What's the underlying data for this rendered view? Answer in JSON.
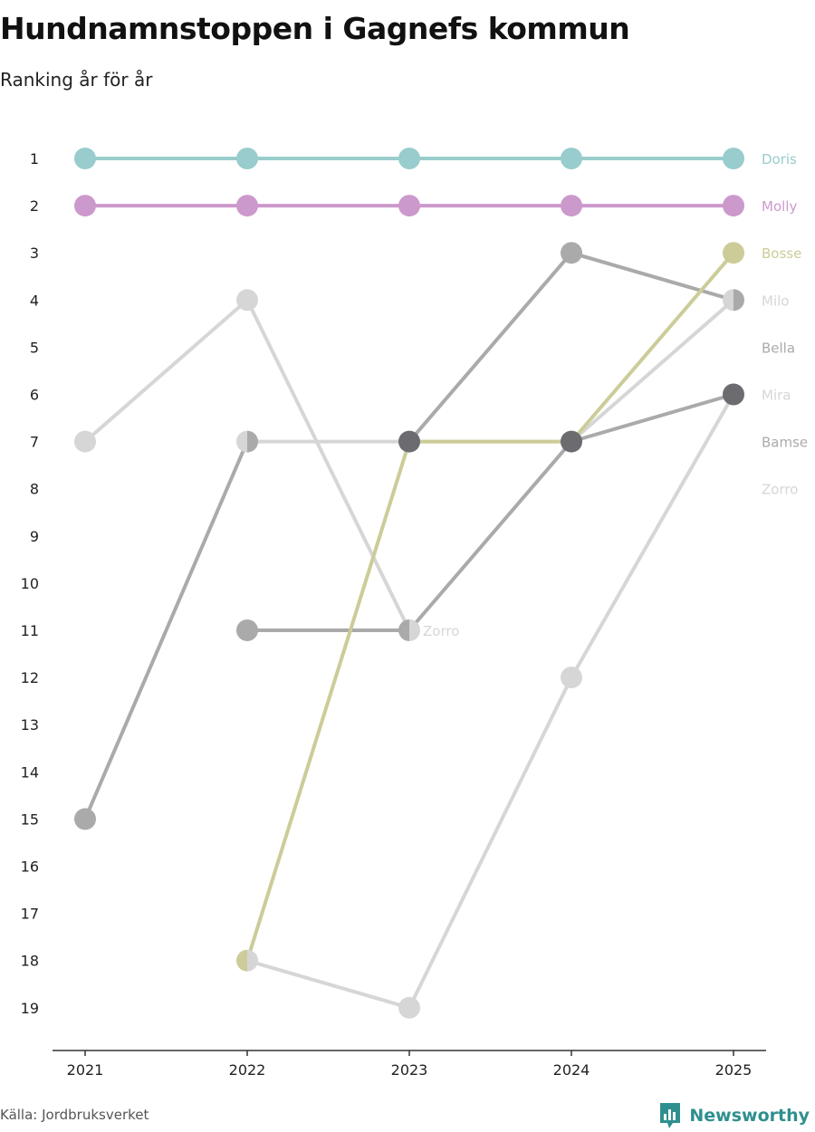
{
  "chart_data": {
    "type": "bump",
    "title": "Hundnamnstoppen i Gagnefs kommun",
    "subtitle": "Ranking år för år",
    "x": [
      "2021",
      "2022",
      "2023",
      "2024",
      "2025"
    ],
    "y_ticks": [
      "1",
      "2",
      "3",
      "4",
      "5",
      "6",
      "7",
      "8",
      "9",
      "10",
      "11",
      "12",
      "13",
      "14",
      "15",
      "16",
      "17",
      "18",
      "19"
    ],
    "ylim": [
      1,
      19
    ],
    "y_reversed": true,
    "series": [
      {
        "name": "Zorro",
        "color": "#d6d6d6",
        "ranks": [
          null,
          null,
          11,
          null,
          null
        ]
      },
      {
        "name": "Bamse",
        "color": "#d6d6d6",
        "ranks": [
          null,
          18,
          19,
          12,
          6
        ]
      },
      {
        "name": "Bella",
        "color": "#d6d6d6",
        "ranks": [
          7,
          4,
          11,
          null,
          null
        ]
      },
      {
        "name": "Milo",
        "color": "#d6d6d6",
        "ranks": [
          null,
          7,
          7,
          7,
          4
        ]
      },
      {
        "name": "Mira",
        "color": "#aaaaaa",
        "ranks": [
          15,
          7,
          null,
          null,
          null
        ]
      },
      {
        "name": "Mira",
        "color": "#aaaaaa",
        "ranks": [
          null,
          11,
          11,
          7,
          6
        ]
      },
      {
        "name": "Bella",
        "color": "#aaaaaa",
        "ranks": [
          null,
          null,
          7,
          3,
          4
        ]
      },
      {
        "name": "Bosse",
        "color": "#cccc99",
        "ranks": [
          null,
          18,
          7,
          7,
          3
        ]
      },
      {
        "name": "Molly",
        "color": "#cc99cc",
        "ranks": [
          2,
          2,
          2,
          2,
          2
        ]
      },
      {
        "name": "Doris",
        "color": "#99cccc",
        "ranks": [
          1,
          1,
          1,
          1,
          1
        ]
      }
    ],
    "markers": [
      {
        "x": "2021",
        "rank": 1,
        "fill": "#99cccc"
      },
      {
        "x": "2022",
        "rank": 1,
        "fill": "#99cccc"
      },
      {
        "x": "2023",
        "rank": 1,
        "fill": "#99cccc"
      },
      {
        "x": "2024",
        "rank": 1,
        "fill": "#99cccc"
      },
      {
        "x": "2025",
        "rank": 1,
        "fill": "#99cccc"
      },
      {
        "x": "2021",
        "rank": 2,
        "fill": "#cc99cc"
      },
      {
        "x": "2022",
        "rank": 2,
        "fill": "#cc99cc"
      },
      {
        "x": "2023",
        "rank": 2,
        "fill": "#cc99cc"
      },
      {
        "x": "2024",
        "rank": 2,
        "fill": "#cc99cc"
      },
      {
        "x": "2025",
        "rank": 2,
        "fill": "#cc99cc"
      },
      {
        "x": "2021",
        "rank": 7,
        "fill": "#d6d6d6"
      },
      {
        "x": "2021",
        "rank": 15,
        "fill": "#aaaaaa"
      },
      {
        "x": "2022",
        "rank": 4,
        "fill": "#d6d6d6"
      },
      {
        "x": "2022",
        "rank": 7,
        "split": [
          "#d6d6d6",
          "#aaaaaa"
        ]
      },
      {
        "x": "2022",
        "rank": 11,
        "fill": "#aaaaaa"
      },
      {
        "x": "2022",
        "rank": 18,
        "split": [
          "#cccc99",
          "#d6d6d6"
        ]
      },
      {
        "x": "2023",
        "rank": 7,
        "fill": "#6b6b70"
      },
      {
        "x": "2023",
        "rank": 11,
        "split": [
          "#aaaaaa",
          "#d6d6d6"
        ]
      },
      {
        "x": "2023",
        "rank": 19,
        "fill": "#d6d6d6"
      },
      {
        "x": "2024",
        "rank": 3,
        "fill": "#aaaaaa"
      },
      {
        "x": "2024",
        "rank": 7,
        "fill": "#6b6b70"
      },
      {
        "x": "2024",
        "rank": 12,
        "fill": "#d6d6d6"
      },
      {
        "x": "2025",
        "rank": 3,
        "fill": "#cccc99"
      },
      {
        "x": "2025",
        "rank": 4,
        "split": [
          "#d6d6d6",
          "#aaaaaa"
        ]
      },
      {
        "x": "2025",
        "rank": 6,
        "fill": "#6b6b70"
      }
    ],
    "end_labels": [
      {
        "rank": 1,
        "text": "Doris",
        "color": "#99cccc"
      },
      {
        "rank": 2,
        "text": "Molly",
        "color": "#cc99cc"
      },
      {
        "rank": 3,
        "text": "Bosse",
        "color": "#cccc99"
      },
      {
        "rank": 4,
        "text": "Milo",
        "color": "#d6d6d6"
      },
      {
        "rank": 5,
        "text": "Bella",
        "color": "#aaaaaa"
      },
      {
        "rank": 6,
        "text": "Mira",
        "color": "#d6d6d6"
      },
      {
        "rank": 7,
        "text": "Bamse",
        "color": "#aaaaaa"
      },
      {
        "rank": 8,
        "text": "Zorro",
        "color": "#d6d6d6"
      }
    ],
    "inline_labels": [
      {
        "x": "2023",
        "rank": 11,
        "text": "Zorro",
        "color": "#d6d6d6"
      }
    ]
  },
  "footer": {
    "source": "Källa: Jordbruksverket",
    "brand": "Newsworthy",
    "brand_color": "#2f8f8f"
  }
}
